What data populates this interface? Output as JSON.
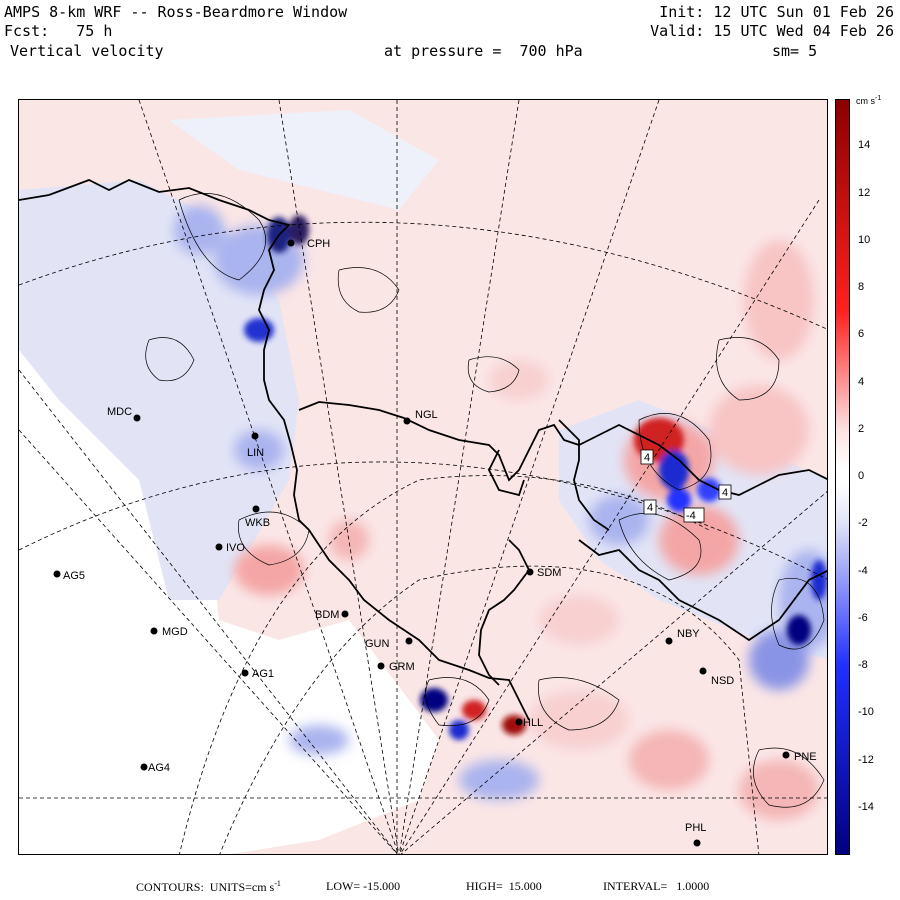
{
  "header": {
    "line1_left": "AMPS 8-km WRF -- Ross-Beardmore Window",
    "line1_right": "Init: 12 UTC Sun 01 Feb 26",
    "line2_left": "Fcst:   75 h",
    "line2_right": "Valid: 15 UTC Wed 04 Feb 26",
    "line3_left": "Vertical velocity",
    "pressure": "at pressure =  700 hPa",
    "smoothing": "sm= 5"
  },
  "colorbar": {
    "unit": "cm s",
    "unit_exp": "-1",
    "ticks": [
      {
        "label": "14",
        "value": 14
      },
      {
        "label": "12",
        "value": 12
      },
      {
        "label": "10",
        "value": 10
      },
      {
        "label": "8",
        "value": 8
      },
      {
        "label": "6",
        "value": 6
      },
      {
        "label": "4",
        "value": 4
      },
      {
        "label": "2",
        "value": 2
      },
      {
        "label": "0",
        "value": 0
      },
      {
        "label": "-2",
        "value": -2
      },
      {
        "label": "-4",
        "value": -4
      },
      {
        "label": "-6",
        "value": -6
      },
      {
        "label": "-8",
        "value": -8
      },
      {
        "label": "-10",
        "value": -10
      },
      {
        "label": "-12",
        "value": -12
      },
      {
        "label": "-14",
        "value": -14
      }
    ],
    "min": -16,
    "max": 16,
    "colors": {
      "max_red": "#8b0000",
      "mid_red": "#ff2020",
      "pale_red": "#fce4e4",
      "white": "#ffffff",
      "pale_blue": "#e2e4f6",
      "mid_blue": "#2030ff",
      "max_blue": "#000080"
    }
  },
  "stations": [
    {
      "id": "CPH",
      "label": "CPH"
    },
    {
      "id": "MDC",
      "label": "MDC"
    },
    {
      "id": "NGL",
      "label": "NGL"
    },
    {
      "id": "LIN",
      "label": "LIN"
    },
    {
      "id": "WKB",
      "label": "WKB"
    },
    {
      "id": "IVO",
      "label": "IVO"
    },
    {
      "id": "AG5",
      "label": "AG5"
    },
    {
      "id": "SDM",
      "label": "SDM"
    },
    {
      "id": "BDM",
      "label": "BDM"
    },
    {
      "id": "MGD",
      "label": "MGD"
    },
    {
      "id": "NBY",
      "label": "NBY"
    },
    {
      "id": "GUN",
      "label": "GUN"
    },
    {
      "id": "GRM",
      "label": "GRM"
    },
    {
      "id": "AG1",
      "label": "AG1"
    },
    {
      "id": "NSD",
      "label": "NSD"
    },
    {
      "id": "HLL",
      "label": "HLL"
    },
    {
      "id": "PNE",
      "label": "PNE"
    },
    {
      "id": "AG4",
      "label": "AG4"
    },
    {
      "id": "PHL",
      "label": "PHL"
    }
  ],
  "contour_labels": [
    "4",
    "4",
    "4",
    "-4"
  ],
  "footer": {
    "contours": "CONTOURS:  UNITS=cm s",
    "contours_exp": "-1",
    "low": "LOW= -15.000",
    "high": "HIGH=  15.000",
    "interval": "INTERVAL=   1.0000"
  }
}
